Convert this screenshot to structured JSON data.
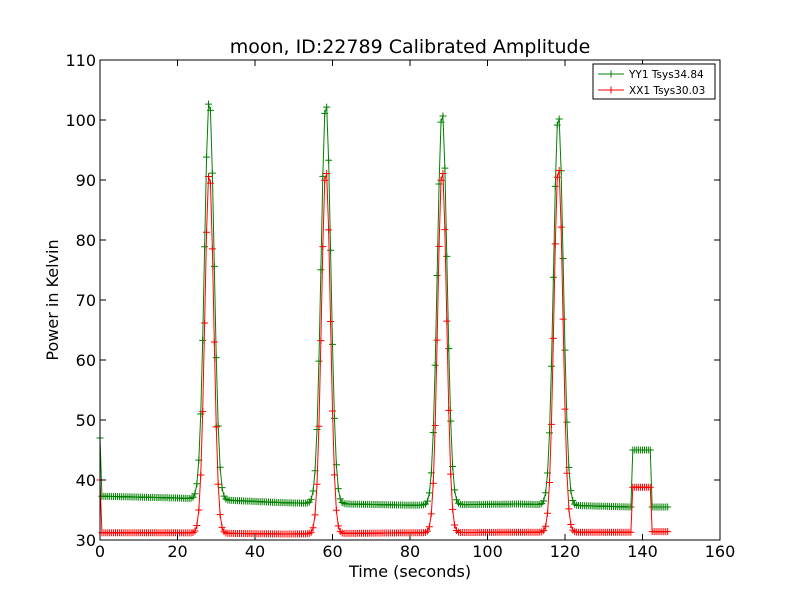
{
  "chart_data": {
    "type": "line",
    "title": "moon, ID:22789 Calibrated Amplitude",
    "xlabel": "Time (seconds)",
    "ylabel": "Power in Kelvin",
    "xlim": [
      0,
      160
    ],
    "ylim": [
      30,
      110
    ],
    "xticks": [
      0,
      20,
      40,
      60,
      80,
      100,
      120,
      140,
      160
    ],
    "yticks": [
      30,
      40,
      50,
      60,
      70,
      80,
      90,
      100,
      110
    ],
    "grid": false,
    "legend_position": "top-right",
    "marker": "+",
    "sample_step": 0.5,
    "series": [
      {
        "name": "YY1 Tsys34.84",
        "color": "#008000",
        "baseline_segments": [
          {
            "from": 0,
            "to": 20,
            "start": 37.3,
            "end": 37.0
          },
          {
            "from": 20,
            "to": 48,
            "start": 37.0,
            "end": 36.2
          },
          {
            "from": 48,
            "to": 80,
            "start": 36.2,
            "end": 35.8
          },
          {
            "from": 80,
            "to": 108,
            "start": 35.8,
            "end": 36.0
          },
          {
            "from": 108,
            "to": 137,
            "start": 36.0,
            "end": 35.5
          }
        ],
        "peaks": [
          {
            "center": 28.2,
            "peak": 103.5,
            "sigma": 1.25
          },
          {
            "center": 58.3,
            "peak": 103.0,
            "sigma": 1.25
          },
          {
            "center": 88.3,
            "peak": 101.5,
            "sigma": 1.25
          },
          {
            "center": 118.3,
            "peak": 101.0,
            "sigma": 1.25
          }
        ],
        "start_spike": {
          "x": 0,
          "value": 47,
          "decay_to": 0.5
        },
        "step": {
          "from": 137.5,
          "to": 142,
          "value": 45
        },
        "tail": {
          "from": 142.5,
          "to": 146.5,
          "value": 35.5
        }
      },
      {
        "name": "XX1 Tsys30.03",
        "color": "#ff0000",
        "baseline_segments": [
          {
            "from": 0,
            "to": 20,
            "start": 31.2,
            "end": 31.2
          },
          {
            "from": 20,
            "to": 48,
            "start": 31.2,
            "end": 31.0
          },
          {
            "from": 48,
            "to": 80,
            "start": 31.0,
            "end": 31.2
          },
          {
            "from": 80,
            "to": 108,
            "start": 31.2,
            "end": 31.3
          },
          {
            "from": 108,
            "to": 137,
            "start": 31.3,
            "end": 31.3
          }
        ],
        "peaks": [
          {
            "center": 28.2,
            "peak": 91.5,
            "sigma": 1.15
          },
          {
            "center": 58.3,
            "peak": 92.0,
            "sigma": 1.15
          },
          {
            "center": 88.3,
            "peak": 92.0,
            "sigma": 1.15
          },
          {
            "center": 118.3,
            "peak": 92.5,
            "sigma": 1.15
          }
        ],
        "start_spike": {
          "x": 0,
          "value": 40,
          "decay_to": 0.5
        },
        "step": {
          "from": 137.5,
          "to": 142,
          "value": 38.8
        },
        "tail": {
          "from": 142.5,
          "to": 146.5,
          "value": 31.4
        }
      }
    ]
  }
}
